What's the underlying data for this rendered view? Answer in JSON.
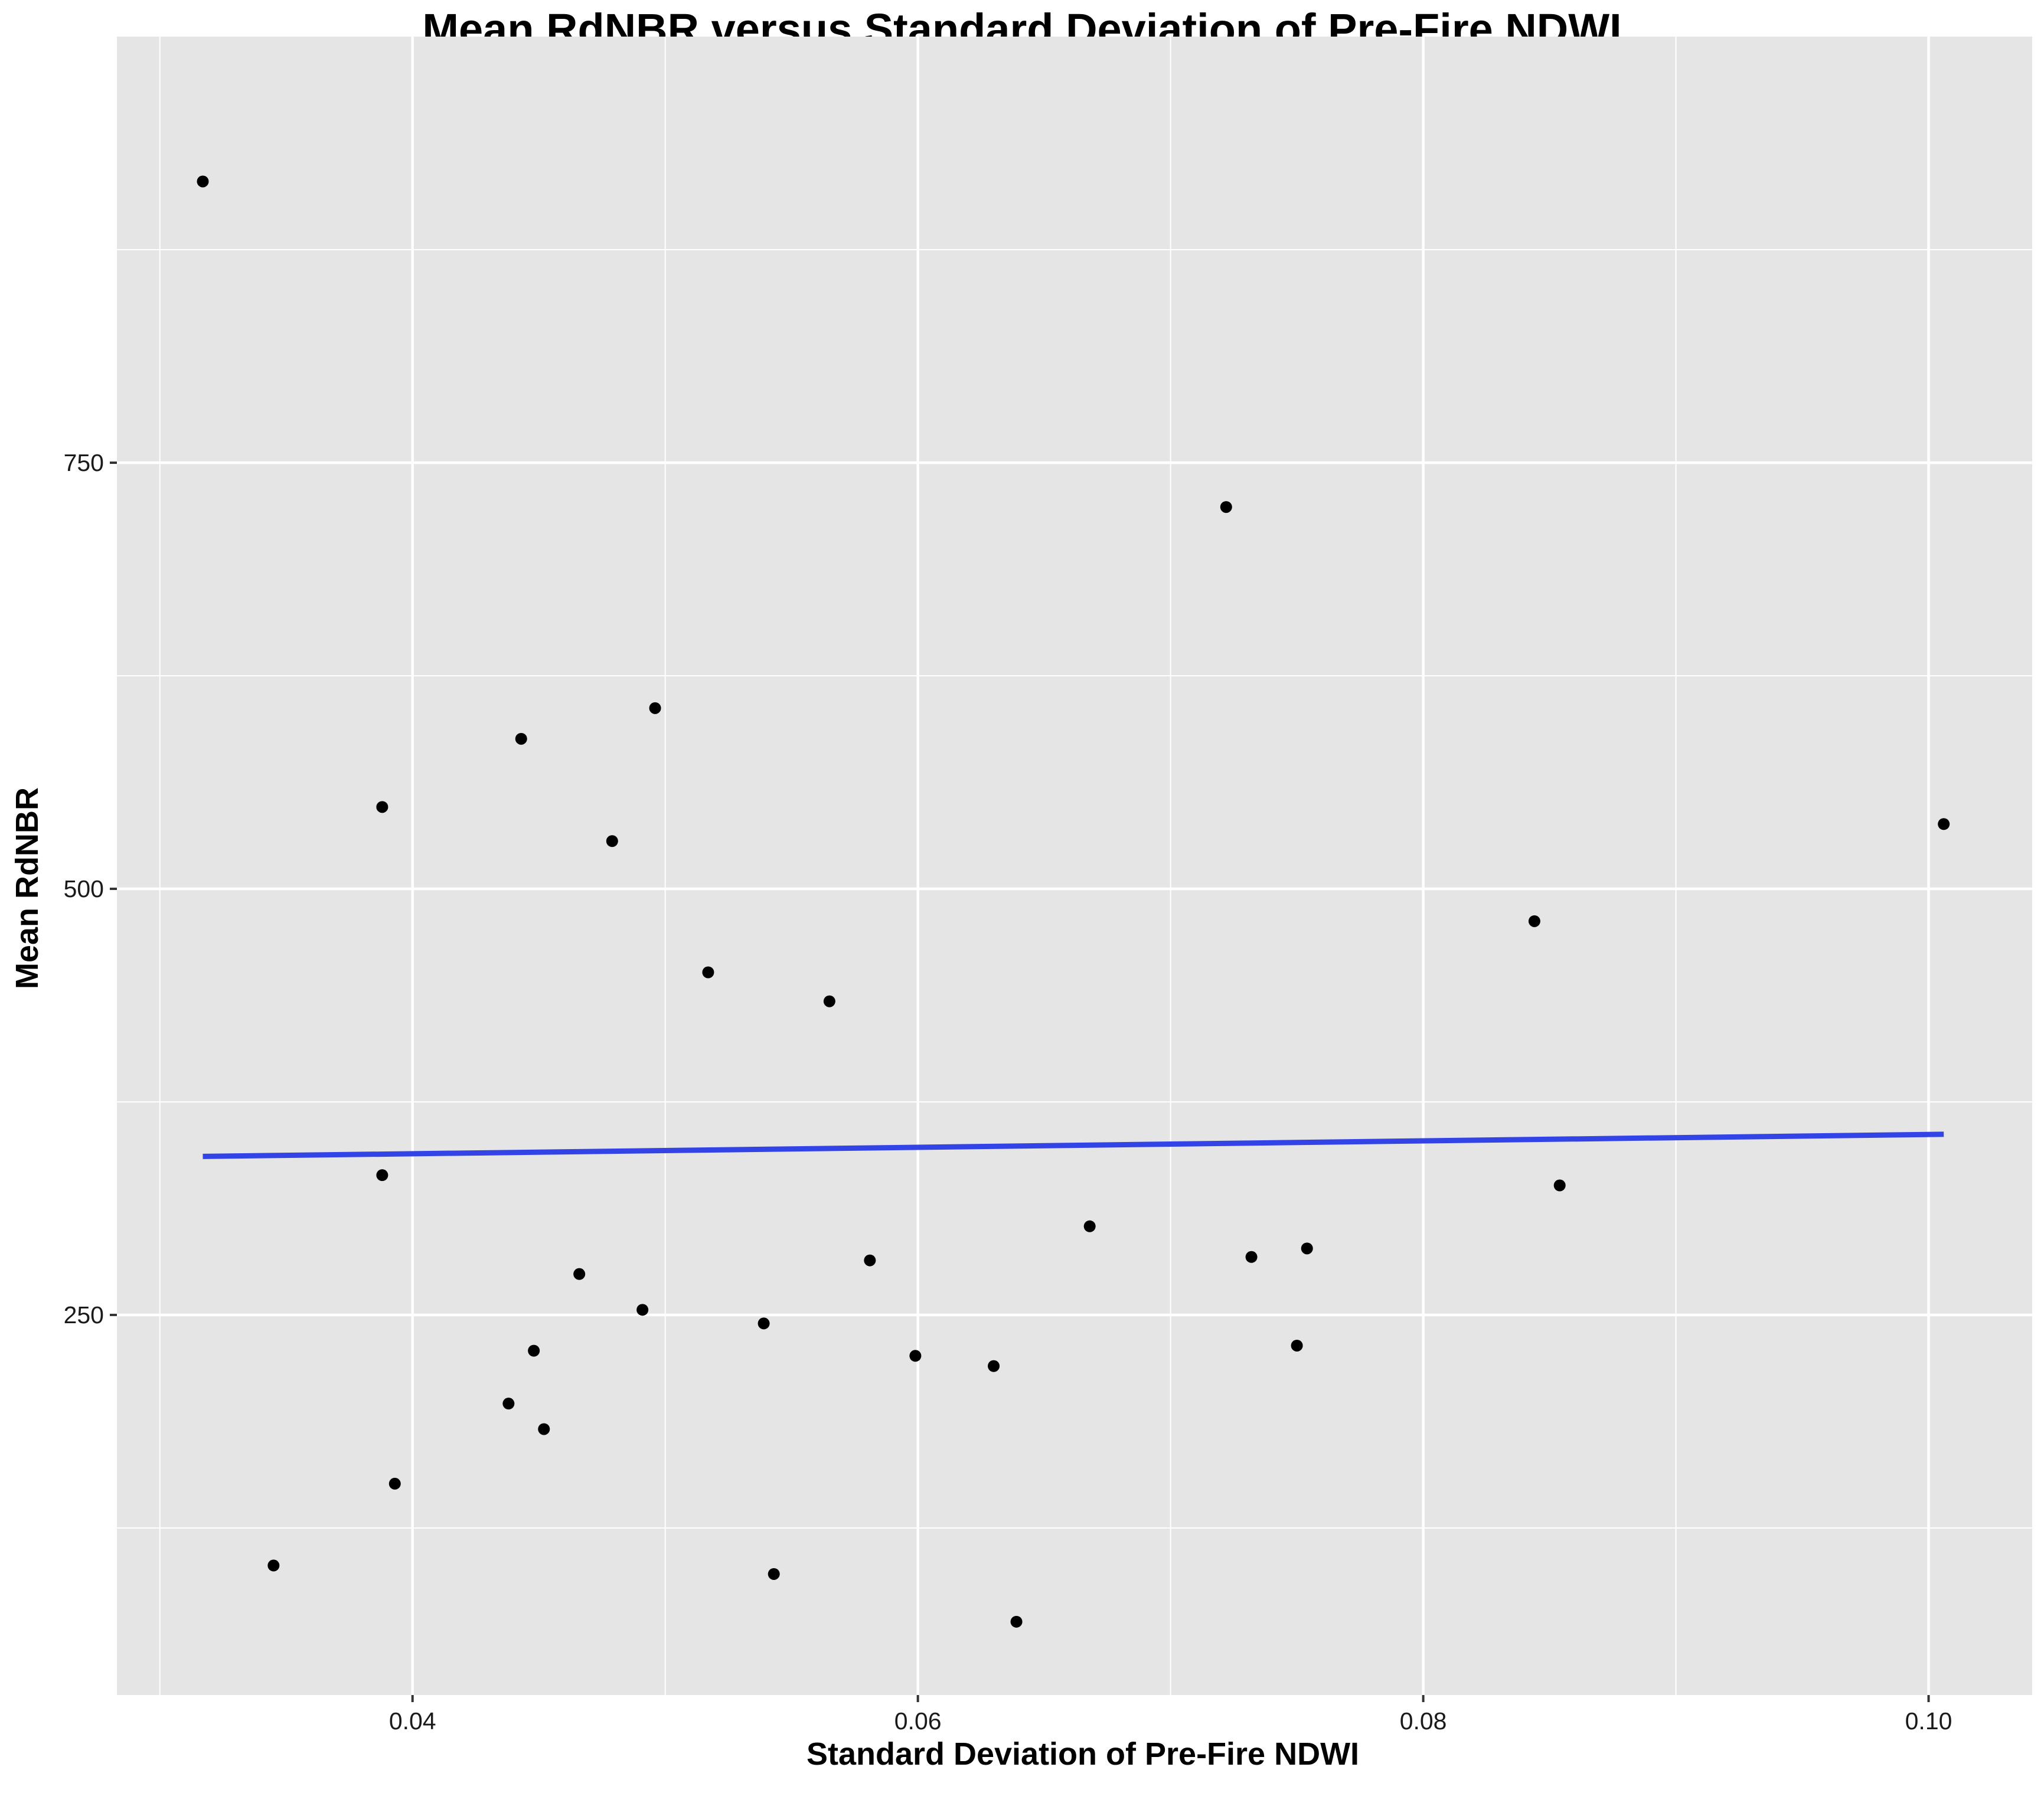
{
  "chart_data": {
    "type": "scatter",
    "title": "Mean RdNBR versus Standard Deviation of Pre-Fire NDWI",
    "xlabel": "Standard Deviation of Pre-Fire NDWI",
    "ylabel": "Mean RdNBR",
    "xlim": [
      0.0283,
      0.1041
    ],
    "ylim": [
      27,
      1000
    ],
    "x_ticks": [
      0.04,
      0.06,
      0.08,
      0.1
    ],
    "x_tick_labels": [
      "0.04",
      "0.06",
      "0.08",
      "0.10"
    ],
    "x_minor_ticks": [
      0.03,
      0.05,
      0.07,
      0.09
    ],
    "y_ticks": [
      250,
      500,
      750
    ],
    "y_tick_labels": [
      "250",
      "500",
      "750"
    ],
    "y_minor_ticks": [
      125,
      375,
      625,
      875
    ],
    "grid": true,
    "points": [
      {
        "x": 0.0317,
        "y": 915
      },
      {
        "x": 0.0345,
        "y": 103
      },
      {
        "x": 0.0388,
        "y": 548
      },
      {
        "x": 0.0388,
        "y": 332
      },
      {
        "x": 0.0393,
        "y": 151
      },
      {
        "x": 0.0438,
        "y": 198
      },
      {
        "x": 0.0443,
        "y": 588
      },
      {
        "x": 0.0448,
        "y": 229
      },
      {
        "x": 0.0452,
        "y": 183
      },
      {
        "x": 0.0466,
        "y": 274
      },
      {
        "x": 0.0479,
        "y": 528
      },
      {
        "x": 0.0491,
        "y": 253
      },
      {
        "x": 0.0496,
        "y": 606
      },
      {
        "x": 0.0517,
        "y": 451
      },
      {
        "x": 0.0539,
        "y": 245
      },
      {
        "x": 0.0543,
        "y": 98
      },
      {
        "x": 0.0565,
        "y": 434
      },
      {
        "x": 0.0581,
        "y": 282
      },
      {
        "x": 0.0599,
        "y": 226
      },
      {
        "x": 0.063,
        "y": 220
      },
      {
        "x": 0.0639,
        "y": 70
      },
      {
        "x": 0.0668,
        "y": 302
      },
      {
        "x": 0.0722,
        "y": 724
      },
      {
        "x": 0.0732,
        "y": 284
      },
      {
        "x": 0.075,
        "y": 232
      },
      {
        "x": 0.0754,
        "y": 289
      },
      {
        "x": 0.0844,
        "y": 481
      },
      {
        "x": 0.0854,
        "y": 326
      },
      {
        "x": 0.1006,
        "y": 538
      }
    ],
    "trend_line": {
      "x": [
        0.0317,
        0.1006
      ],
      "y": [
        343,
        356
      ],
      "color": "#3344e6"
    },
    "point_color": "#000000",
    "panel_color": "#e5e5e5",
    "grid_color": "#ffffff"
  }
}
